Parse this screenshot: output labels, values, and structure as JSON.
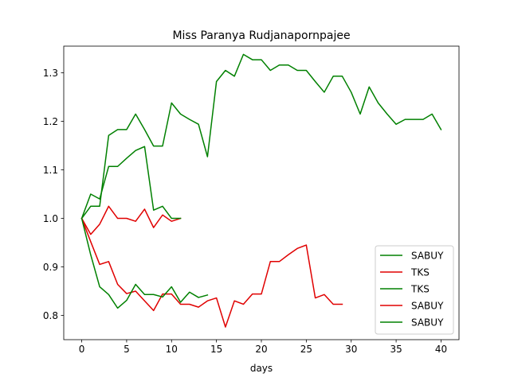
{
  "chart_data": {
    "type": "line",
    "title": "Miss Paranya Rudjanapornpajee",
    "xlabel": "days",
    "ylabel": "",
    "xlim": [
      -2,
      42
    ],
    "ylim": [
      0.75,
      1.355
    ],
    "xticks": [
      0,
      5,
      10,
      15,
      20,
      25,
      30,
      35,
      40
    ],
    "yticks": [
      0.8,
      0.9,
      1.0,
      1.1,
      1.2,
      1.3
    ],
    "ytick_labels": [
      "0.8",
      "0.9",
      "1.0",
      "1.1",
      "1.2",
      "1.3"
    ],
    "legend_position": "lower-right",
    "grid": false,
    "series": [
      {
        "name": "SABUY",
        "color": "#008000",
        "x": [
          0,
          1,
          2,
          3,
          4,
          5,
          6,
          7,
          8,
          9,
          10,
          11,
          12,
          13,
          14,
          15,
          16,
          17,
          18,
          19,
          20,
          21,
          22,
          23,
          24,
          25,
          26,
          27,
          28,
          29,
          30,
          31,
          32,
          33,
          34,
          35,
          36,
          37,
          38,
          39,
          40
        ],
        "y": [
          1.0,
          1.025,
          1.025,
          1.171,
          1.183,
          1.183,
          1.215,
          1.183,
          1.149,
          1.149,
          1.238,
          1.215,
          1.204,
          1.194,
          1.127,
          1.282,
          1.305,
          1.293,
          1.338,
          1.327,
          1.327,
          1.305,
          1.316,
          1.316,
          1.305,
          1.305,
          1.282,
          1.26,
          1.293,
          1.293,
          1.26,
          1.215,
          1.271,
          1.238,
          1.215,
          1.194,
          1.204,
          1.204,
          1.204,
          1.215,
          1.183
        ]
      },
      {
        "name": "TKS",
        "color": "#e00000",
        "x": [
          0,
          1,
          2,
          3,
          4,
          5,
          6,
          7,
          8,
          9,
          10,
          11
        ],
        "y": [
          1.0,
          0.967,
          0.988,
          1.025,
          1.0,
          1.0,
          0.994,
          1.019,
          0.981,
          1.007,
          0.994,
          1.0
        ]
      },
      {
        "name": "TKS",
        "color": "#008000",
        "x": [
          0,
          1,
          2,
          3,
          4,
          5,
          6,
          7,
          8,
          9,
          10,
          11
        ],
        "y": [
          1.0,
          1.05,
          1.04,
          1.107,
          1.107,
          1.124,
          1.14,
          1.148,
          1.017,
          1.025,
          1.0,
          1.0
        ]
      },
      {
        "name": "SABUY",
        "color": "#e00000",
        "x": [
          0,
          1,
          2,
          3,
          4,
          5,
          6,
          7,
          8,
          9,
          10,
          11,
          12,
          13,
          14,
          15,
          16,
          17,
          18,
          19,
          20,
          21,
          22,
          23,
          24,
          25,
          26,
          27,
          28,
          29
        ],
        "y": [
          1.0,
          0.952,
          0.905,
          0.911,
          0.864,
          0.845,
          0.85,
          0.83,
          0.81,
          0.844,
          0.844,
          0.823,
          0.823,
          0.817,
          0.83,
          0.836,
          0.776,
          0.83,
          0.823,
          0.844,
          0.844,
          0.911,
          0.911,
          0.925,
          0.938,
          0.945,
          0.836,
          0.843,
          0.823,
          0.823
        ]
      },
      {
        "name": "SABUY",
        "color": "#008000",
        "x": [
          0,
          1,
          2,
          3,
          4,
          5,
          6,
          7,
          8,
          9,
          10,
          11,
          12,
          13,
          14
        ],
        "y": [
          1.0,
          0.925,
          0.859,
          0.843,
          0.815,
          0.831,
          0.864,
          0.843,
          0.843,
          0.838,
          0.859,
          0.827,
          0.848,
          0.837,
          0.842
        ]
      }
    ]
  }
}
